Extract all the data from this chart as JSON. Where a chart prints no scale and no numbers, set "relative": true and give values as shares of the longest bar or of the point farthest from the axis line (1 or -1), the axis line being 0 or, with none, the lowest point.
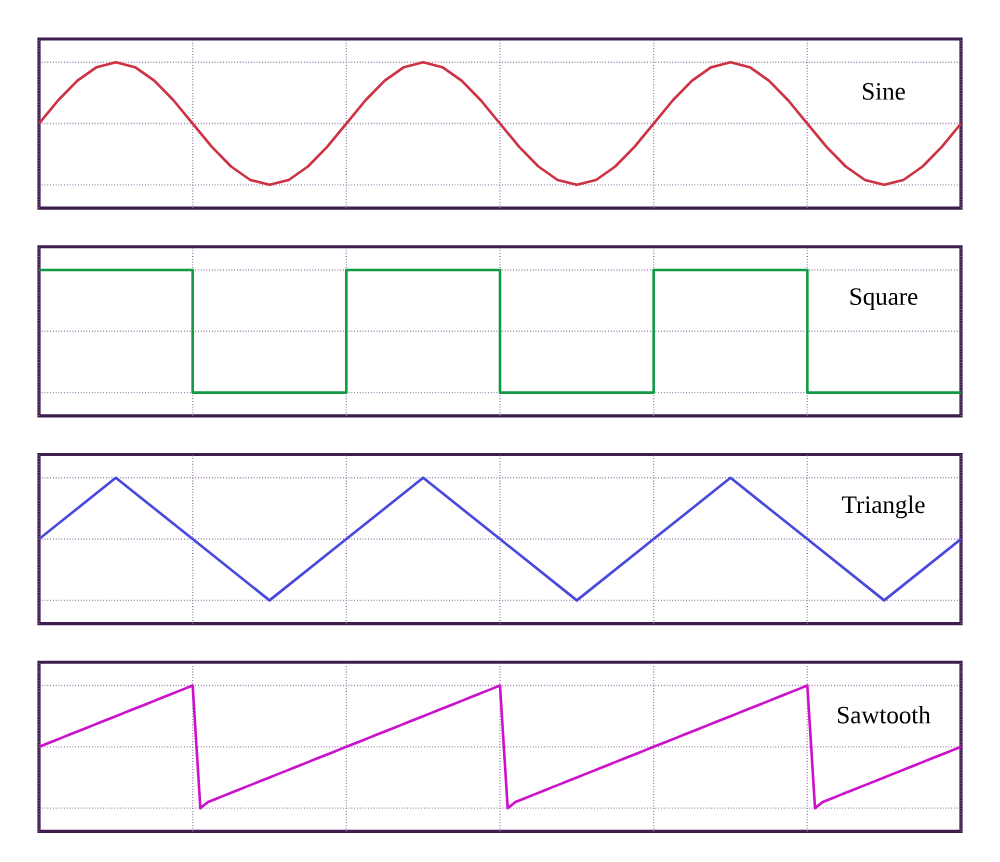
{
  "chart_data": [
    {
      "type": "line",
      "relative": true,
      "grid": true,
      "categories": [
        null,
        null,
        null,
        null,
        null,
        null,
        null,
        null,
        null,
        null,
        null,
        null,
        null,
        null,
        null,
        null,
        null,
        null,
        null,
        null,
        null,
        null,
        null,
        null,
        null,
        null,
        null,
        null,
        null,
        null,
        null,
        null,
        null,
        null,
        null,
        null,
        null,
        null,
        null,
        null,
        null,
        null,
        null,
        null,
        null,
        null,
        null,
        null,
        null
      ],
      "series": [
        {
          "name": "Sine",
          "color": "#cc3344",
          "values": [
            0.5,
            0.69,
            0.85,
            0.96,
            1,
            0.96,
            0.85,
            0.69,
            0.5,
            0.31,
            0.15,
            0.04,
            0,
            0.04,
            0.15,
            0.31,
            0.5,
            0.69,
            0.85,
            0.96,
            1,
            0.96,
            0.85,
            0.69,
            0.5,
            0.31,
            0.15,
            0.04,
            0,
            0.04,
            0.15,
            0.31,
            0.5,
            0.69,
            0.85,
            0.96,
            1,
            0.96,
            0.85,
            0.69,
            0.5,
            0.31,
            0.15,
            0.04,
            0,
            0.04,
            0.15,
            0.31,
            0.5
          ]
        }
      ]
    },
    {
      "type": "step",
      "relative": true,
      "grid": true,
      "categories": [
        null,
        null,
        null,
        null,
        null,
        null,
        null
      ],
      "series": [
        {
          "name": "Square",
          "color": "#119944",
          "values": [
            1,
            0,
            1,
            0,
            1,
            0,
            0
          ]
        }
      ]
    },
    {
      "type": "line",
      "relative": true,
      "grid": true,
      "categories": [
        null,
        null,
        null,
        null,
        null,
        null,
        null,
        null,
        null,
        null,
        null,
        null,
        null
      ],
      "series": [
        {
          "name": "Triangle",
          "color": "#4848dd",
          "values": [
            0.5,
            1,
            0.5,
            0,
            0.5,
            1,
            0.5,
            0,
            0.5,
            1,
            0.5,
            0,
            0.5
          ]
        }
      ]
    },
    {
      "type": "line",
      "relative": true,
      "grid": true,
      "categories": [
        null,
        null,
        null,
        null,
        null,
        null,
        null,
        null,
        null,
        null,
        null,
        null,
        null,
        null,
        null,
        null,
        null,
        null,
        null,
        null,
        null,
        null,
        null,
        null,
        null,
        null,
        null,
        null,
        null,
        null,
        null,
        null,
        null,
        null,
        null,
        null,
        null,
        null,
        null,
        null,
        null,
        null,
        null,
        null,
        null,
        null,
        null,
        null,
        null,
        null,
        null,
        null,
        null,
        null,
        null,
        null,
        null,
        null,
        null,
        null,
        null,
        null,
        null,
        null,
        null,
        null,
        null,
        null,
        null,
        null,
        null,
        null,
        null,
        null,
        null,
        null,
        null,
        null,
        null,
        null,
        null,
        null,
        null,
        null,
        null,
        null,
        null,
        null,
        null,
        null,
        null,
        null,
        null,
        null,
        null,
        null,
        null,
        null,
        null,
        null,
        null,
        null,
        null,
        null,
        null,
        null,
        null,
        null,
        null,
        null,
        null,
        null,
        null,
        null,
        null,
        null,
        null,
        null,
        null,
        null,
        null
      ],
      "series": [
        {
          "name": "Sawtooth",
          "color": "#cc11cc",
          "values": [
            0.5,
            0.525,
            0.55,
            0.575,
            0.6,
            0.625,
            0.65,
            0.675,
            0.7,
            0.725,
            0.75,
            0.775,
            0.8,
            0.825,
            0.85,
            0.875,
            0.9,
            0.925,
            0.95,
            0.975,
            1,
            0,
            0.05,
            0.075,
            0.1,
            0.125,
            0.15,
            0.175,
            0.2,
            0.225,
            0.25,
            0.275,
            0.3,
            0.325,
            0.35,
            0.375,
            0.4,
            0.425,
            0.45,
            0.475,
            0.5,
            0.525,
            0.55,
            0.575,
            0.6,
            0.625,
            0.65,
            0.675,
            0.7,
            0.725,
            0.75,
            0.775,
            0.8,
            0.825,
            0.85,
            0.875,
            0.9,
            0.925,
            0.95,
            0.975,
            1,
            0,
            0.05,
            0.075,
            0.1,
            0.125,
            0.15,
            0.175,
            0.2,
            0.225,
            0.25,
            0.275,
            0.3,
            0.325,
            0.35,
            0.375,
            0.4,
            0.425,
            0.45,
            0.475,
            0.5,
            0.525,
            0.55,
            0.575,
            0.6,
            0.625,
            0.65,
            0.675,
            0.7,
            0.725,
            0.75,
            0.775,
            0.8,
            0.825,
            0.85,
            0.875,
            0.9,
            0.925,
            0.95,
            0.975,
            1,
            0,
            0.05,
            0.075,
            0.1,
            0.125,
            0.15,
            0.175,
            0.2,
            0.225,
            0.25,
            0.275,
            0.3,
            0.325,
            0.35,
            0.375,
            0.4,
            0.425,
            0.45,
            0.475,
            0.5
          ]
        }
      ]
    }
  ]
}
